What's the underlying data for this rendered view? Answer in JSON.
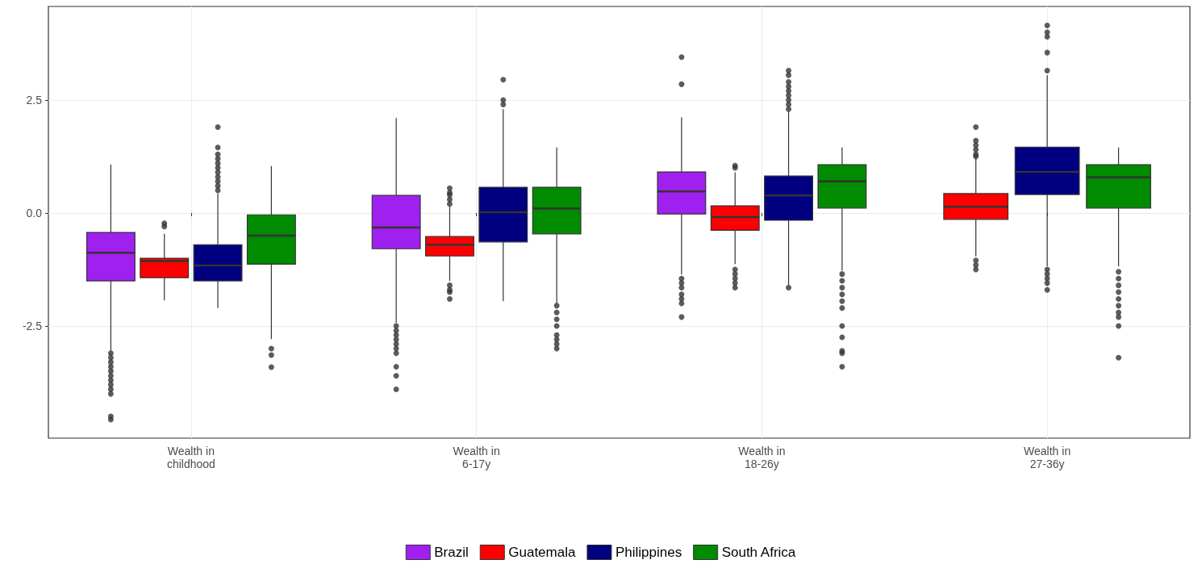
{
  "chart_data": {
    "type": "box",
    "categories": [
      "Wealth in\nchildhood",
      "Wealth in\n6-17y",
      "Wealth in\n18-26y",
      "Wealth in\n27-36y"
    ],
    "series": [
      {
        "name": "Brazil",
        "color": "#a020f0",
        "boxes": [
          {
            "low": -3.05,
            "q1": -1.5,
            "median": -0.88,
            "q3": -0.43,
            "high": 1.07,
            "outliers": [
              -3.1,
              -3.2,
              -3.3,
              -3.4,
              -3.5,
              -3.6,
              -3.7,
              -3.8,
              -3.9,
              -4.0,
              -4.5,
              -4.57
            ]
          },
          {
            "low": -2.43,
            "q1": -0.79,
            "median": -0.32,
            "q3": 0.39,
            "high": 2.1,
            "outliers": [
              -2.5,
              -2.6,
              -2.7,
              -2.8,
              -2.9,
              -3.0,
              -3.1,
              -3.4,
              -3.6,
              -3.9
            ]
          },
          {
            "low": -1.36,
            "q1": -0.02,
            "median": 0.48,
            "q3": 0.91,
            "high": 2.12,
            "outliers": [
              -1.45,
              -1.55,
              -1.65,
              -1.8,
              -1.9,
              -2.0,
              -2.3,
              2.85,
              3.45
            ]
          },
          null
        ]
      },
      {
        "name": "Guatemala",
        "color": "#ff0000",
        "boxes": [
          {
            "low": -1.93,
            "q1": -1.43,
            "median": -1.06,
            "q3": -1.0,
            "high": -0.46,
            "outliers": [
              -0.23,
              -0.3
            ]
          },
          {
            "low": -1.5,
            "q1": -0.95,
            "median": -0.7,
            "q3": -0.52,
            "high": 0.14,
            "outliers": [
              0.2,
              0.3,
              0.4,
              0.45,
              0.55,
              -1.6,
              -1.7,
              -1.75,
              -1.9
            ]
          },
          {
            "low": -1.13,
            "q1": -0.38,
            "median": -0.09,
            "q3": 0.16,
            "high": 0.9,
            "outliers": [
              1.0,
              1.05,
              -1.25,
              -1.35,
              -1.45,
              -1.55,
              -1.65
            ]
          },
          {
            "low": -0.96,
            "q1": -0.14,
            "median": 0.14,
            "q3": 0.43,
            "high": 1.2,
            "outliers": [
              1.25,
              1.3,
              1.4,
              1.5,
              1.6,
              1.9,
              -1.05,
              -1.15,
              -1.25
            ]
          }
        ]
      },
      {
        "name": "Philippines",
        "color": "#000080",
        "boxes": [
          {
            "low": -2.1,
            "q1": -1.5,
            "median": -1.16,
            "q3": -0.7,
            "high": 0.43,
            "outliers": [
              0.5,
              0.6,
              0.7,
              0.8,
              0.9,
              1.0,
              1.1,
              1.2,
              1.3,
              1.45,
              1.9
            ]
          },
          {
            "low": -1.95,
            "q1": -0.64,
            "median": 0.02,
            "q3": 0.57,
            "high": 2.3,
            "outliers": [
              2.4,
              2.5,
              2.95
            ]
          },
          {
            "low": -1.6,
            "q1": -0.16,
            "median": 0.39,
            "q3": 0.82,
            "high": 2.25,
            "outliers": [
              2.3,
              2.4,
              2.5,
              2.6,
              2.7,
              2.8,
              2.9,
              3.05,
              3.15,
              -1.65
            ]
          },
          {
            "low": -1.18,
            "q1": 0.41,
            "median": 0.91,
            "q3": 1.46,
            "high": 3.05,
            "outliers": [
              3.15,
              3.55,
              3.9,
              4.0,
              4.15,
              -1.25,
              -1.35,
              -1.45,
              -1.55,
              -1.7
            ]
          }
        ]
      },
      {
        "name": "South Africa",
        "color": "#008b00",
        "boxes": [
          {
            "low": -2.79,
            "q1": -1.13,
            "median": -0.5,
            "q3": -0.04,
            "high": 1.04,
            "outliers": [
              -3.0,
              -3.14,
              -3.41
            ]
          },
          {
            "low": -2.0,
            "q1": -0.46,
            "median": 0.1,
            "q3": 0.57,
            "high": 1.45,
            "outliers": [
              -2.05,
              -2.2,
              -2.35,
              -2.5,
              -2.7,
              -2.8,
              -2.9,
              -3.0
            ]
          },
          {
            "low": -1.27,
            "q1": 0.11,
            "median": 0.7,
            "q3": 1.07,
            "high": 1.45,
            "outliers": [
              -1.35,
              -1.5,
              -1.65,
              -1.8,
              -1.95,
              -2.1,
              -2.5,
              -2.75,
              -3.05,
              -3.1,
              -3.4
            ]
          },
          {
            "low": -1.18,
            "q1": 0.11,
            "median": 0.79,
            "q3": 1.07,
            "high": 1.45,
            "outliers": [
              -1.3,
              -1.45,
              -1.6,
              -1.75,
              -1.9,
              -2.05,
              -2.2,
              -2.3,
              -2.5,
              -3.2
            ]
          }
        ]
      }
    ],
    "ylim": [
      -4.98,
      4.57
    ],
    "yticks": [
      -2.5,
      {
        "value": 0,
        "label": "0.0"
      },
      2.5
    ],
    "grid": true,
    "legend": "bottom"
  }
}
